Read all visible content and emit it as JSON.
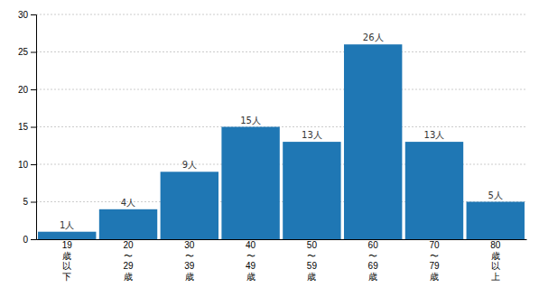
{
  "chart_data": {
    "type": "bar",
    "categories": [
      "19\n歳\n以\n下",
      "20\n〜\n29\n歳",
      "30\n〜\n39\n歳",
      "40\n〜\n49\n歳",
      "50\n〜\n59\n歳",
      "60\n〜\n69\n歳",
      "70\n〜\n79\n歳",
      "80\n歳\n以\n上"
    ],
    "values": [
      1,
      4,
      9,
      15,
      13,
      26,
      13,
      5
    ],
    "value_labels": [
      "1人",
      "4人",
      "9人",
      "15人",
      "13人",
      "26人",
      "13人",
      "5人"
    ],
    "data_labels": true,
    "ylim": [
      0,
      30
    ],
    "yticks": [
      0,
      5,
      10,
      15,
      20,
      25,
      30
    ],
    "grid": true
  }
}
